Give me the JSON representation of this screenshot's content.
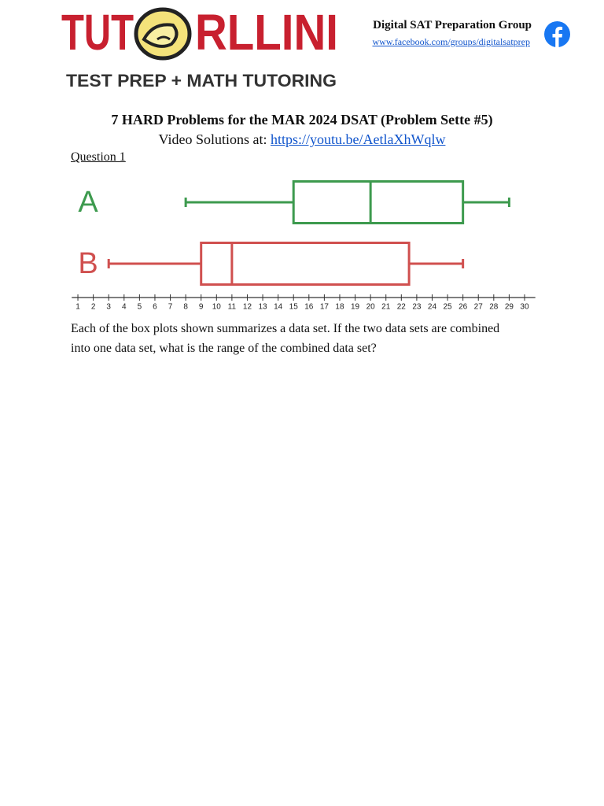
{
  "header": {
    "logo_left": "TUT",
    "logo_right": "RLLINI",
    "tagline": "TEST PREP + MATH TUTORING",
    "group_name": "Digital SAT Preparation Group",
    "group_link": "www.facebook.com/groups/digitalsatprep"
  },
  "title": "7 HARD Problems for the MAR 2024 DSAT (Problem Sette #5)",
  "video_label": "Video Solutions at:",
  "video_link": "https://youtu.be/AetlaXhWqlw",
  "question_label": "Question 1",
  "chart_data": {
    "type": "boxplot",
    "orientation": "horizontal",
    "series": [
      {
        "name": "A",
        "color": "#3d9a4e",
        "values": {
          "min": 8,
          "q1": 15,
          "median": 20,
          "q3": 26,
          "max": 29
        }
      },
      {
        "name": "B",
        "color": "#d0504f",
        "values": {
          "min": 3,
          "q1": 9,
          "median": 11,
          "q3": 22.5,
          "max": 26
        }
      }
    ],
    "xlim": [
      0.6,
      30.7
    ],
    "xticks": [
      1,
      2,
      3,
      4,
      5,
      6,
      7,
      8,
      9,
      10,
      11,
      12,
      13,
      14,
      15,
      16,
      17,
      18,
      19,
      20,
      21,
      22,
      23,
      24,
      25,
      26,
      27,
      28,
      29,
      30
    ]
  },
  "question_text": "Each of the box plots shown summarizes a data set. If the two data sets are combined into one data set, what is the range of the combined data set?"
}
